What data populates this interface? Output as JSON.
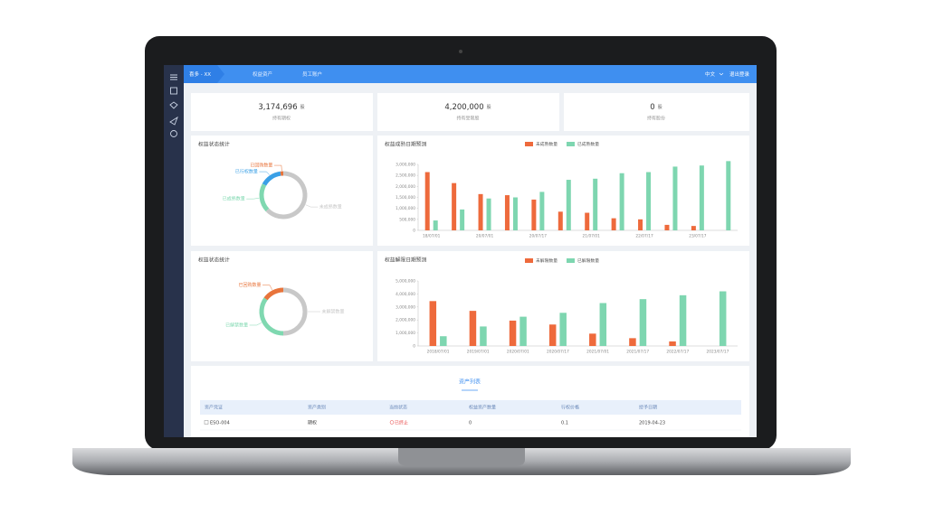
{
  "nav": {
    "brand": "喜多 - XX",
    "tabs": [
      "权益资产",
      "员工账户"
    ],
    "lang": "中文",
    "logout": "退出登录"
  },
  "stats": [
    {
      "value": "3,174,696",
      "unit": "股",
      "label": "持有期权"
    },
    {
      "value": "4,200,000",
      "unit": "股",
      "label": "持有受限股"
    },
    {
      "value": "0",
      "unit": "股",
      "label": "持有股份"
    }
  ],
  "chart_data": [
    {
      "type": "pie",
      "title": "权益状态统计",
      "categories": [
        "已回购数量",
        "已行权数量",
        "已成熟数量",
        "未成熟数量"
      ],
      "values": [
        2,
        15,
        20,
        63
      ],
      "colors": [
        "#e8743b",
        "#3aa0e6",
        "#7fd8b0",
        "#c8c8c8"
      ]
    },
    {
      "type": "bar",
      "title": "权益成熟日期预测",
      "categories": [
        "18/07/01",
        null,
        "20/07/01",
        null,
        "20/07/17",
        null,
        "21/07/01",
        null,
        "22/07/17",
        null,
        "23/07/17",
        null
      ],
      "series": [
        {
          "name": "未成熟数量",
          "color": "#ee6a3c",
          "values": [
            2650000,
            2150000,
            1650000,
            1600000,
            1400000,
            850000,
            800000,
            550000,
            500000,
            250000,
            200000,
            0
          ]
        },
        {
          "name": "已成熟数量",
          "color": "#7ed6b0",
          "values": [
            450000,
            950000,
            1450000,
            1500000,
            1750000,
            2300000,
            2350000,
            2600000,
            2650000,
            2900000,
            2950000,
            3150000
          ]
        }
      ],
      "ylim": [
        0,
        3000000
      ],
      "yticks": [
        0,
        {
          "value": 500000,
          "label": "500,000"
        },
        {
          "value": 1000000,
          "label": "1,000,000"
        },
        {
          "value": 1500000,
          "label": "1,500,000"
        },
        {
          "value": 2000000,
          "label": "2,000,000"
        },
        {
          "value": 2500000,
          "label": "2,500,000"
        },
        {
          "value": 3000000,
          "label": "3,000,000"
        }
      ]
    },
    {
      "type": "pie",
      "title": "权益状态统计",
      "categories": [
        "已回购数量",
        "已解禁数量",
        "未解禁数量"
      ],
      "values": [
        15,
        35,
        50
      ],
      "colors": [
        "#e8743b",
        "#7fd8b0",
        "#c8c8c8"
      ]
    },
    {
      "type": "bar",
      "title": "权益解限日期预测",
      "categories": [
        "2018/07/01",
        "2019/07/01",
        "2020/07/01",
        "2020/07/17",
        "2021/07/01",
        "2021/07/17",
        "2022/07/17",
        "2023/07/17"
      ],
      "series": [
        {
          "name": "未解限数量",
          "color": "#ee6a3c",
          "values": [
            3450000,
            2700000,
            1950000,
            1650000,
            950000,
            600000,
            350000,
            0
          ]
        },
        {
          "name": "已解限数量",
          "color": "#7ed6b0",
          "values": [
            750000,
            1500000,
            2250000,
            2550000,
            3300000,
            3600000,
            3900000,
            4200000
          ]
        }
      ],
      "ylim": [
        0,
        5000000
      ],
      "yticks": [
        0,
        {
          "value": 1000000,
          "label": "1,000,000"
        },
        {
          "value": 2000000,
          "label": "2,000,000"
        },
        {
          "value": 3000000,
          "label": "3,000,000"
        },
        {
          "value": 4000000,
          "label": "4,000,000"
        },
        {
          "value": 5000000,
          "label": "5,000,000"
        }
      ]
    }
  ],
  "table": {
    "title": "资产列表",
    "headers": [
      "资产凭证",
      "资产类别",
      "当前状态",
      "权益资产数量",
      "行权价格",
      "授予日期"
    ],
    "rows": [
      [
        "ESO-004",
        "期权",
        "已终止",
        "0",
        "0.1",
        "2019-04-23"
      ]
    ]
  }
}
